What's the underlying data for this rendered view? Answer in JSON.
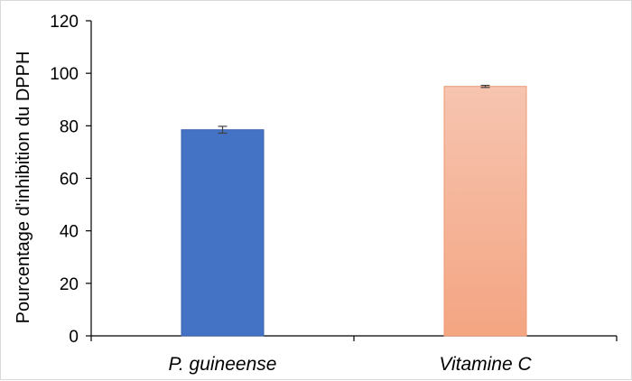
{
  "chart_data": {
    "type": "bar",
    "title": "",
    "xlabel": "",
    "ylabel": "Pourcentage d'inhibition du DPPH",
    "ylim": [
      0,
      120
    ],
    "yticks": [
      0,
      20,
      40,
      60,
      80,
      100,
      120
    ],
    "categories": [
      "P. guineense",
      "Vitamine C"
    ],
    "values": [
      78.5,
      95.0
    ],
    "errors": [
      1.3,
      0.4
    ],
    "grid": false,
    "legend": "none",
    "colors": {
      "bars": [
        "#4472c4",
        "#f4a582"
      ],
      "bar_gradient_top": "#f6c4b0",
      "bar_stroke": [
        "#3a63ad",
        "#ed9a73"
      ],
      "error_bar": "#404040",
      "axis": "#000000"
    }
  }
}
